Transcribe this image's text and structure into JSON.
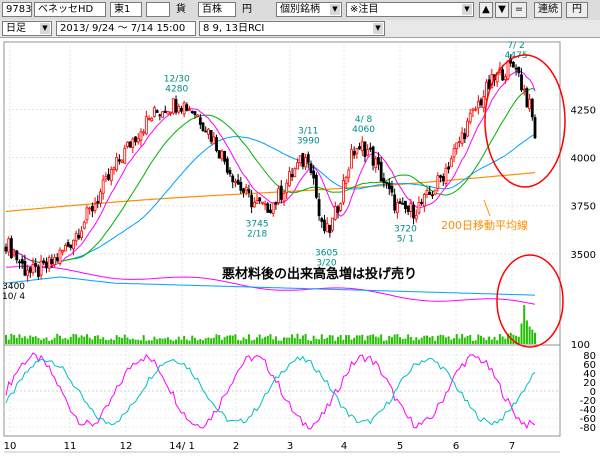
{
  "toolbar": {
    "code": "9783",
    "name": "ベネッセHD",
    "market": "東1",
    "currency_label": "貨",
    "unit": "百株",
    "yen_label": "円",
    "list_select": "個別銘柄",
    "watch_select": "※注目",
    "up_label": "▲",
    "down_label": "▼",
    "equal_label": "=",
    "link_label": "連続",
    "yen_button": "円",
    "period": "日足",
    "date_range": "2013/ 9/24 〜 7/14 15:00",
    "indicator": "8 9, 13日RCI"
  },
  "chart_data": {
    "type": "candlestick",
    "price_axis": {
      "ticks": [
        3500,
        3750,
        4000,
        4250
      ],
      "ylim": [
        3250,
        4600
      ]
    },
    "volume_axis": {
      "ticks": [
        100
      ]
    },
    "oscillator_axis": {
      "ticks": [
        80,
        60,
        40,
        20,
        0,
        -20,
        -40,
        -60,
        -80
      ],
      "ylim": [
        -100,
        100
      ]
    },
    "x_tick_labels": [
      "10",
      "11",
      "12",
      "14/ 1",
      "2",
      "3",
      "4",
      "5",
      "6",
      "7"
    ],
    "anchors": [
      {
        "date": "10/ 4",
        "price": 3400
      },
      {
        "date": "12/30",
        "price": 4280
      },
      {
        "date": "2/18",
        "price": 3745
      },
      {
        "date": "3/11",
        "price": 3990
      },
      {
        "date": "3/20",
        "price": 3605
      },
      {
        "date": "4/ 8",
        "price": 4060
      },
      {
        "date": "5/ 1",
        "price": 3720
      },
      {
        "date": "7/ 2",
        "price": 4475
      }
    ],
    "annotations": [
      {
        "kind": "high",
        "date": "12/30",
        "price": "4280"
      },
      {
        "kind": "low",
        "date": "2/18",
        "price": "3745"
      },
      {
        "kind": "high",
        "date": "3/11",
        "price": "3990"
      },
      {
        "kind": "low",
        "date": "3/20",
        "price": "3605"
      },
      {
        "kind": "high",
        "date": "4/ 8",
        "price": "4060"
      },
      {
        "kind": "low",
        "date": "5/ 1",
        "price": "3720"
      },
      {
        "kind": "high",
        "date": "7/ 2",
        "price": "4475"
      },
      {
        "kind": "low",
        "date": "10/ 4",
        "price": "3400"
      }
    ],
    "ma200_label": "200日移動平均線",
    "comment": "悪材料後の出来高急増は投げ売り",
    "colors": {
      "up": "#ff0000",
      "down": "#000000",
      "ma_short": "#ff00ff",
      "ma_mid": "#00b000",
      "ma_long": "#00a0ff",
      "ma_200": "#ff8c00",
      "volume": "#22c000",
      "rci_fast": "#ff00ff",
      "rci_slow": "#00c0c0",
      "highlight": "#ff0000",
      "label_blue": "#008b8b"
    }
  }
}
